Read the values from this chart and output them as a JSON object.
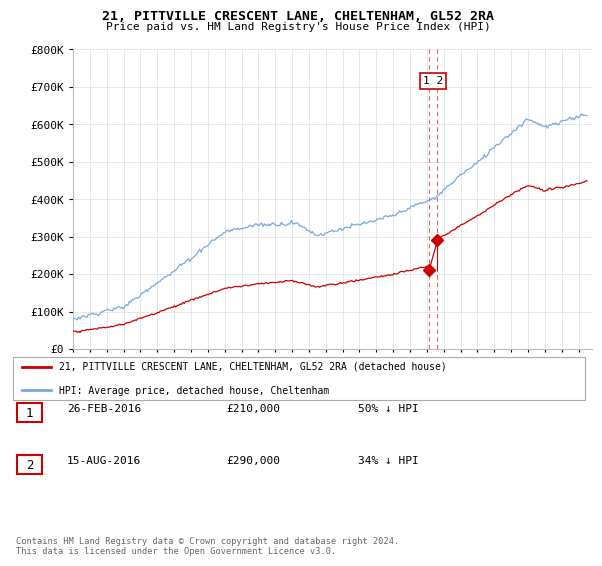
{
  "title": "21, PITTVILLE CRESCENT LANE, CHELTENHAM, GL52 2RA",
  "subtitle": "Price paid vs. HM Land Registry's House Price Index (HPI)",
  "legend_line1": "21, PITTVILLE CRESCENT LANE, CHELTENHAM, GL52 2RA (detached house)",
  "legend_line2": "HPI: Average price, detached house, Cheltenham",
  "table_rows": [
    {
      "num": "1",
      "date": "26-FEB-2016",
      "price": "£210,000",
      "pct": "50% ↓ HPI"
    },
    {
      "num": "2",
      "date": "15-AUG-2016",
      "price": "£290,000",
      "pct": "34% ↓ HPI"
    }
  ],
  "footnote": "Contains HM Land Registry data © Crown copyright and database right 2024.\nThis data is licensed under the Open Government Licence v3.0.",
  "ylim": [
    0,
    800000
  ],
  "yticks": [
    0,
    100000,
    200000,
    300000,
    400000,
    500000,
    600000,
    700000,
    800000
  ],
  "hpi_color": "#7aaadd",
  "price_color": "#cc0000",
  "vline_color": "#cc0000",
  "background_color": "#ffffff",
  "grid_color": "#dddddd",
  "t1": 2016.13,
  "t2": 2016.63,
  "p1": 210000,
  "p2": 290000
}
